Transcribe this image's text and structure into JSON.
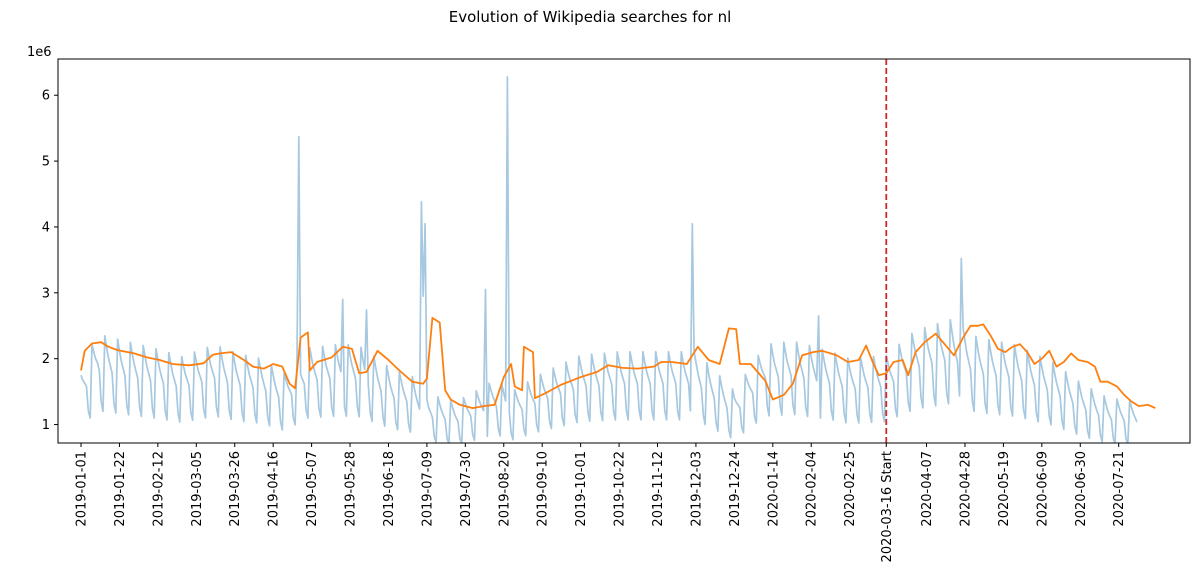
{
  "chart_data": {
    "type": "line",
    "title": "Evolution of Wikipedia searches for nl",
    "xlabel": "",
    "ylabel": "",
    "y_offset_label": "1e6",
    "ylim": [
      0.72,
      6.55
    ],
    "yticks": [
      1,
      2,
      3,
      4,
      5,
      6
    ],
    "x_start": "2019-01-01",
    "x_end": "2020-07-31",
    "xticks": [
      "2019-01-01",
      "2019-01-22",
      "2019-02-12",
      "2019-03-05",
      "2019-03-26",
      "2019-04-16",
      "2019-05-07",
      "2019-05-28",
      "2019-06-18",
      "2019-07-09",
      "2019-07-30",
      "2019-08-20",
      "2019-09-10",
      "2019-10-01",
      "2019-10-22",
      "2019-11-12",
      "2019-12-03",
      "2019-12-24",
      "2020-01-14",
      "2020-02-04",
      "2020-02-25",
      "2020-03-16 Start",
      "2020-04-07",
      "2020-04-28",
      "2020-05-19",
      "2020-06-09",
      "2020-06-30",
      "2020-07-21"
    ],
    "grid": false,
    "vline": {
      "x": "2020-03-16",
      "color": "#d62728",
      "style": "dashed"
    },
    "series": [
      {
        "color": "#a6c8e0",
        "weekly_pattern": [
          1.0,
          0.93,
          0.88,
          0.83,
          0.62,
          0.55,
          1.08
        ],
        "level_points": [
          [
            "2019-01-01",
            1.75
          ],
          [
            "2019-01-10",
            2.2
          ],
          [
            "2019-01-25",
            2.1
          ],
          [
            "2019-02-10",
            2.0
          ],
          [
            "2019-02-25",
            1.88
          ],
          [
            "2019-03-15",
            2.05
          ],
          [
            "2019-03-28",
            1.92
          ],
          [
            "2019-04-10",
            1.85
          ],
          [
            "2019-04-22",
            1.65
          ],
          [
            "2019-05-05",
            2.0
          ],
          [
            "2019-05-20",
            2.05
          ],
          [
            "2019-06-01",
            2.05
          ],
          [
            "2019-06-20",
            1.7
          ],
          [
            "2019-07-01",
            1.6
          ],
          [
            "2019-07-10",
            1.35
          ],
          [
            "2019-07-25",
            1.25
          ],
          [
            "2019-08-05",
            1.4
          ],
          [
            "2019-08-15",
            1.55
          ],
          [
            "2019-08-25",
            1.4
          ],
          [
            "2019-09-10",
            1.65
          ],
          [
            "2019-10-01",
            1.9
          ],
          [
            "2019-10-22",
            1.95
          ],
          [
            "2019-11-12",
            1.95
          ],
          [
            "2019-12-03",
            1.95
          ],
          [
            "2019-12-24",
            1.4
          ],
          [
            "2020-01-10",
            2.05
          ],
          [
            "2020-01-25",
            2.1
          ],
          [
            "2020-02-15",
            1.95
          ],
          [
            "2020-02-25",
            1.85
          ],
          [
            "2020-03-16",
            1.9
          ],
          [
            "2020-04-01",
            2.25
          ],
          [
            "2020-04-20",
            2.4
          ],
          [
            "2020-05-05",
            2.15
          ],
          [
            "2020-05-25",
            2.05
          ],
          [
            "2020-06-15",
            1.8
          ],
          [
            "2020-07-01",
            1.5
          ],
          [
            "2020-07-15",
            1.3
          ],
          [
            "2020-07-31",
            1.25
          ]
        ],
        "spikes": [
          [
            "2019-04-30",
            5.37
          ],
          [
            "2019-05-24",
            2.9
          ],
          [
            "2019-06-06",
            2.74
          ],
          [
            "2019-07-06",
            4.38
          ],
          [
            "2019-07-07",
            2.95
          ],
          [
            "2019-07-08",
            4.05
          ],
          [
            "2019-08-10",
            3.05
          ],
          [
            "2019-08-22",
            6.28
          ],
          [
            "2019-12-01",
            4.05
          ],
          [
            "2020-02-08",
            2.65
          ],
          [
            "2020-04-26",
            3.52
          ]
        ]
      },
      {
        "color": "#ff7f0e",
        "points": [
          [
            "2019-01-01",
            1.82
          ],
          [
            "2019-01-03",
            2.12
          ],
          [
            "2019-01-07",
            2.23
          ],
          [
            "2019-01-12",
            2.25
          ],
          [
            "2019-01-16",
            2.18
          ],
          [
            "2019-01-21",
            2.13
          ],
          [
            "2019-01-30",
            2.08
          ],
          [
            "2019-02-06",
            2.02
          ],
          [
            "2019-02-13",
            1.98
          ],
          [
            "2019-02-20",
            1.92
          ],
          [
            "2019-03-01",
            1.9
          ],
          [
            "2019-03-09",
            1.93
          ],
          [
            "2019-03-14",
            2.06
          ],
          [
            "2019-03-18",
            2.08
          ],
          [
            "2019-03-24",
            2.1
          ],
          [
            "2019-03-31",
            1.98
          ],
          [
            "2019-04-05",
            1.88
          ],
          [
            "2019-04-11",
            1.85
          ],
          [
            "2019-04-16",
            1.92
          ],
          [
            "2019-04-21",
            1.88
          ],
          [
            "2019-04-25",
            1.62
          ],
          [
            "2019-04-28",
            1.55
          ],
          [
            "2019-05-01",
            2.32
          ],
          [
            "2019-05-05",
            2.4
          ],
          [
            "2019-05-06",
            1.82
          ],
          [
            "2019-05-10",
            1.95
          ],
          [
            "2019-05-18",
            2.02
          ],
          [
            "2019-05-24",
            2.18
          ],
          [
            "2019-05-29",
            2.15
          ],
          [
            "2019-06-02",
            1.78
          ],
          [
            "2019-06-06",
            1.8
          ],
          [
            "2019-06-12",
            2.12
          ],
          [
            "2019-06-18",
            1.98
          ],
          [
            "2019-06-24",
            1.82
          ],
          [
            "2019-07-01",
            1.65
          ],
          [
            "2019-07-07",
            1.62
          ],
          [
            "2019-07-09",
            1.7
          ],
          [
            "2019-07-12",
            2.62
          ],
          [
            "2019-07-16",
            2.55
          ],
          [
            "2019-07-19",
            1.52
          ],
          [
            "2019-07-22",
            1.38
          ],
          [
            "2019-07-27",
            1.3
          ],
          [
            "2019-08-03",
            1.25
          ],
          [
            "2019-08-09",
            1.28
          ],
          [
            "2019-08-15",
            1.3
          ],
          [
            "2019-08-20",
            1.72
          ],
          [
            "2019-08-24",
            1.92
          ],
          [
            "2019-08-26",
            1.58
          ],
          [
            "2019-08-30",
            1.52
          ],
          [
            "2019-08-31",
            2.18
          ],
          [
            "2019-09-05",
            2.1
          ],
          [
            "2019-09-06",
            1.4
          ],
          [
            "2019-09-12",
            1.48
          ],
          [
            "2019-09-20",
            1.6
          ],
          [
            "2019-10-01",
            1.72
          ],
          [
            "2019-10-10",
            1.8
          ],
          [
            "2019-10-16",
            1.9
          ],
          [
            "2019-10-24",
            1.86
          ],
          [
            "2019-11-01",
            1.85
          ],
          [
            "2019-11-10",
            1.88
          ],
          [
            "2019-11-14",
            1.95
          ],
          [
            "2019-11-20",
            1.95
          ],
          [
            "2019-11-28",
            1.92
          ],
          [
            "2019-12-04",
            2.18
          ],
          [
            "2019-12-10",
            1.98
          ],
          [
            "2019-12-16",
            1.92
          ],
          [
            "2019-12-21",
            2.46
          ],
          [
            "2019-12-25",
            2.45
          ],
          [
            "2019-12-27",
            1.92
          ],
          [
            "2020-01-02",
            1.92
          ],
          [
            "2020-01-10",
            1.66
          ],
          [
            "2020-01-14",
            1.38
          ],
          [
            "2020-01-20",
            1.45
          ],
          [
            "2020-01-25",
            1.62
          ],
          [
            "2020-01-30",
            2.05
          ],
          [
            "2020-02-05",
            2.1
          ],
          [
            "2020-02-10",
            2.12
          ],
          [
            "2020-02-18",
            2.05
          ],
          [
            "2020-02-24",
            1.95
          ],
          [
            "2020-03-01",
            1.98
          ],
          [
            "2020-03-05",
            2.2
          ],
          [
            "2020-03-09",
            1.92
          ],
          [
            "2020-03-12",
            1.75
          ],
          [
            "2020-03-16",
            1.78
          ],
          [
            "2020-03-20",
            1.95
          ],
          [
            "2020-03-25",
            1.98
          ],
          [
            "2020-03-28",
            1.75
          ],
          [
            "2020-04-01",
            2.1
          ],
          [
            "2020-04-06",
            2.25
          ],
          [
            "2020-04-12",
            2.38
          ],
          [
            "2020-04-16",
            2.25
          ],
          [
            "2020-04-22",
            2.05
          ],
          [
            "2020-04-27",
            2.32
          ],
          [
            "2020-05-01",
            2.5
          ],
          [
            "2020-05-05",
            2.5
          ],
          [
            "2020-05-08",
            2.52
          ],
          [
            "2020-05-12",
            2.35
          ],
          [
            "2020-05-16",
            2.15
          ],
          [
            "2020-05-20",
            2.1
          ],
          [
            "2020-05-24",
            2.18
          ],
          [
            "2020-05-28",
            2.22
          ],
          [
            "2020-06-01",
            2.1
          ],
          [
            "2020-06-05",
            1.92
          ],
          [
            "2020-06-09",
            2.0
          ],
          [
            "2020-06-13",
            2.12
          ],
          [
            "2020-06-17",
            1.88
          ],
          [
            "2020-06-21",
            1.95
          ],
          [
            "2020-06-25",
            2.08
          ],
          [
            "2020-06-29",
            1.98
          ],
          [
            "2020-07-04",
            1.95
          ],
          [
            "2020-07-08",
            1.88
          ],
          [
            "2020-07-11",
            1.65
          ],
          [
            "2020-07-15",
            1.65
          ],
          [
            "2020-07-20",
            1.58
          ],
          [
            "2020-07-24",
            1.45
          ],
          [
            "2020-07-28",
            1.35
          ],
          [
            "2020-08-01",
            1.28
          ],
          [
            "2020-08-06",
            1.3
          ],
          [
            "2020-08-10",
            1.25
          ]
        ]
      }
    ]
  }
}
